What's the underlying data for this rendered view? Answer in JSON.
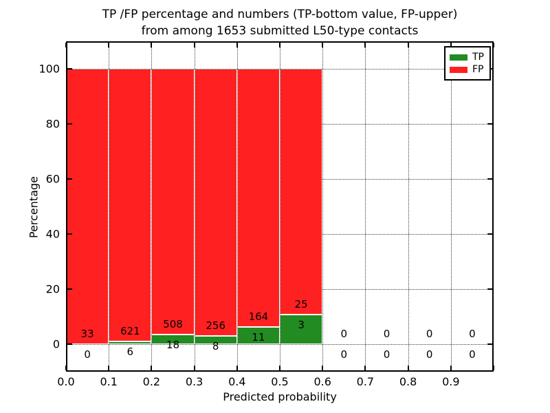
{
  "figure": {
    "title_line1": "TP /FP percentage and numbers (TP-bottom value, FP-upper)",
    "title_line2": "from among 1653 submitted L50-type contacts"
  },
  "axes": {
    "xlabel": "Predicted probability",
    "ylabel": "Percentage",
    "x_tick_labels": [
      "0.0",
      "0.1",
      "0.2",
      "0.3",
      "0.4",
      "0.5",
      "0.6",
      "0.7",
      "0.8",
      "0.9"
    ],
    "y_tick_labels": [
      "0",
      "20",
      "40",
      "60",
      "80",
      "100"
    ]
  },
  "legend": {
    "items": [
      {
        "label": "TP",
        "color": "#228b22"
      },
      {
        "label": "FP",
        "color": "#ff2121"
      }
    ]
  },
  "chart_data": {
    "type": "bar",
    "stacked": true,
    "title": "TP /FP percentage and numbers (TP-bottom value, FP-upper) from among 1653 submitted L50-type contacts",
    "xlabel": "Predicted probability",
    "ylabel": "Percentage",
    "xlim": [
      0.0,
      1.0
    ],
    "ylim": [
      -10,
      110
    ],
    "grid": true,
    "grid_style": "dotted",
    "legend_position": "upper right",
    "total_contacts": 1653,
    "bin_edges": [
      0.0,
      0.1,
      0.2,
      0.3,
      0.4,
      0.5,
      0.6,
      0.7,
      0.8,
      0.9,
      1.0
    ],
    "y_ticks": [
      0,
      20,
      40,
      60,
      80,
      100
    ],
    "series": [
      {
        "name": "TP",
        "color": "#228b22",
        "counts": [
          0,
          6,
          18,
          8,
          11,
          3,
          0,
          0,
          0,
          0
        ],
        "percent": [
          0,
          0.96,
          3.42,
          3.03,
          6.29,
          10.71,
          0,
          0,
          0,
          0
        ]
      },
      {
        "name": "FP",
        "color": "#ff2121",
        "counts": [
          33,
          621,
          508,
          256,
          164,
          25,
          0,
          0,
          0,
          0
        ],
        "percent": [
          100,
          99.04,
          96.58,
          96.97,
          93.71,
          89.29,
          0,
          0,
          0,
          0
        ]
      }
    ]
  }
}
